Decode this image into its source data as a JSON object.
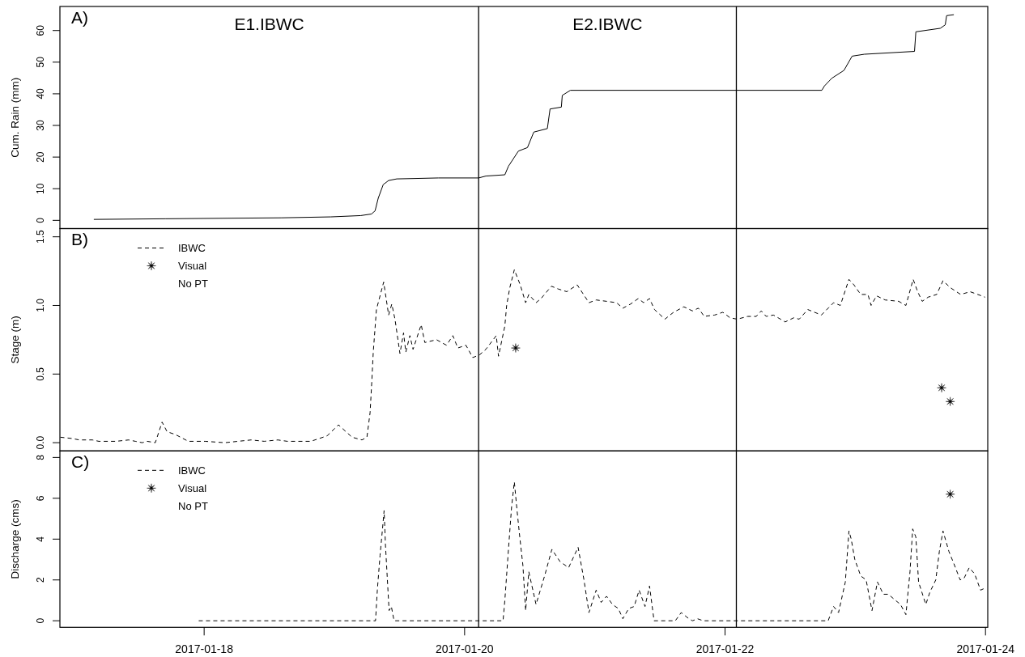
{
  "chart_data": [
    {
      "type": "line",
      "title": "A)",
      "ylabel": "Cum. Rain (mm)",
      "xlim": [
        "2017-01-16T21:25",
        "2017-01-24T00:25"
      ],
      "ylim": [
        -2.6,
        67.6
      ],
      "yticks": [
        0,
        10,
        20,
        30,
        40,
        50,
        60
      ],
      "tick_labels": "y",
      "series": [
        {
          "color": "#000000",
          "x": [
            "2017-01-17T03:40",
            "2017-01-17T16:50",
            "2017-01-18T14:10",
            "2017-01-18T23:20",
            "2017-01-19T04:50",
            "2017-01-19T06:50",
            "2017-01-19T07:30",
            "2017-01-19T08:05",
            "2017-01-19T09:00",
            "2017-01-19T10:00",
            "2017-01-19T11:30",
            "2017-01-19T19:10",
            "2017-01-20T02:35",
            "2017-01-20T03:55",
            "2017-01-20T07:25",
            "2017-01-20T08:05",
            "2017-01-20T09:55",
            "2017-01-20T11:35",
            "2017-01-20T12:45",
            "2017-01-20T15:15",
            "2017-01-20T15:45",
            "2017-01-20T17:50",
            "2017-01-20T18:00",
            "2017-01-20T19:30",
            "2017-01-22T02:05",
            "2017-01-22T17:50",
            "2017-01-22T18:20",
            "2017-01-22T19:40",
            "2017-01-22T21:55",
            "2017-01-22T23:25",
            "2017-01-23T01:40",
            "2017-01-23T10:55",
            "2017-01-23T11:10",
            "2017-01-23T15:40",
            "2017-01-23T16:35",
            "2017-01-23T16:50",
            "2017-01-23T18:10"
          ],
          "values": [
            0.3,
            0.5,
            0.8,
            1.1,
            1.5,
            2.0,
            3,
            7,
            11.3,
            12.6,
            13.1,
            13.4,
            13.4,
            14.0,
            14.4,
            17.1,
            21.9,
            23.0,
            27.9,
            29.0,
            35.2,
            35.8,
            39.5,
            41.1,
            41.1,
            41.1,
            42.5,
            44.9,
            47.4,
            51.9,
            52.5,
            53.4,
            59.6,
            60.7,
            61.8,
            64.7,
            65.0
          ]
        }
      ],
      "ref_lines": [
        {
          "axis": "x",
          "value": "2017-01-20T02:35",
          "color": "#000000"
        },
        {
          "axis": "x",
          "value": "2017-01-22T02:05",
          "color": "#000000"
        }
      ],
      "annotations": [
        "E1.IBWC",
        "E2.IBWC"
      ]
    },
    {
      "type": "line",
      "title": "B)",
      "ylabel": "Stage (m)",
      "xlim": [
        "2017-01-16T21:25",
        "2017-01-24T00:25"
      ],
      "ylim": [
        -0.06,
        1.56
      ],
      "yticks": [
        {
          "value": 0,
          "label": "0.0"
        },
        0.5,
        {
          "value": 1,
          "label": "1.0"
        },
        1.5
      ],
      "tick_labels": "y",
      "legend": "top left",
      "series": [
        {
          "name": "IBWC",
          "line_style": "dashed",
          "color": "#000000",
          "x": [
            "2017-01-16T21:30",
            "2017-01-16T23:45",
            "2017-01-17T01:00",
            "2017-01-17T03:25",
            "2017-01-17T04:35",
            "2017-01-17T06:30",
            "2017-01-17T07:45",
            "2017-01-17T10:05",
            "2017-01-17T11:20",
            "2017-01-17T12:35",
            "2017-01-17T13:30",
            "2017-01-17T15:00",
            "2017-01-17T16:15",
            "2017-01-17T17:10",
            "2017-01-17T18:40",
            "2017-01-17T21:05",
            "2017-01-18T00:10",
            "2017-01-18T03:50",
            "2017-01-18T06:15",
            "2017-01-18T08:40",
            "2017-01-18T11:05",
            "2017-01-18T13:35",
            "2017-01-18T15:20",
            "2017-01-18T19:40",
            "2017-01-18T22:40",
            "2017-01-19T00:45",
            "2017-01-19T03:15",
            "2017-01-19T05:05",
            "2017-01-19T06:00",
            "2017-01-19T06:35",
            "2017-01-19T06:55",
            "2017-01-19T07:10",
            "2017-01-19T07:45",
            "2017-01-19T09:05",
            "2017-01-19T10:00",
            "2017-01-19T10:35",
            "2017-01-19T11:10",
            "2017-01-19T12:05",
            "2017-01-19T12:45",
            "2017-01-19T13:10",
            "2017-01-19T13:55",
            "2017-01-19T14:30",
            "2017-01-19T16:00",
            "2017-01-19T16:40",
            "2017-01-19T18:50",
            "2017-01-19T20:40",
            "2017-01-19T21:50",
            "2017-01-19T22:45",
            "2017-01-20T00:15",
            "2017-01-20T01:30",
            "2017-01-20T02:45",
            "2017-01-20T03:55",
            "2017-01-20T05:50",
            "2017-01-20T06:15",
            "2017-01-20T07:25",
            "2017-01-20T07:45",
            "2017-01-20T08:20",
            "2017-01-20T09:10",
            "2017-01-20T10:15",
            "2017-01-20T11:15",
            "2017-01-20T11:50",
            "2017-01-20T13:10",
            "2017-01-20T14:05",
            "2017-01-20T16:00",
            "2017-01-20T17:15",
            "2017-01-20T18:50",
            "2017-01-20T20:45",
            "2017-01-20T22:55",
            "2017-01-21T00:15",
            "2017-01-21T02:10",
            "2017-01-21T04:00",
            "2017-01-21T05:10",
            "2017-01-21T06:35",
            "2017-01-21T08:00",
            "2017-01-21T09:00",
            "2017-01-21T10:05",
            "2017-01-21T11:00",
            "2017-01-21T12:55",
            "2017-01-21T14:30",
            "2017-01-21T16:25",
            "2017-01-21T18:00",
            "2017-01-21T19:05",
            "2017-01-21T20:10",
            "2017-01-21T22:05",
            "2017-01-21T23:35",
            "2017-01-22T00:55",
            "2017-01-22T02:15",
            "2017-01-22T04:10",
            "2017-01-22T05:45",
            "2017-01-22T06:40",
            "2017-01-22T07:35",
            "2017-01-22T08:55",
            "2017-01-22T11:05",
            "2017-01-22T12:40",
            "2017-01-22T13:40",
            "2017-01-22T15:15",
            "2017-01-22T17:45",
            "2017-01-22T20:00",
            "2017-01-22T21:15",
            "2017-01-22T22:10",
            "2017-01-22T22:50",
            "2017-01-22T23:45",
            "2017-01-23T01:00",
            "2017-01-23T02:20",
            "2017-01-23T02:55",
            "2017-01-23T03:55",
            "2017-01-23T05:30",
            "2017-01-23T08:00",
            "2017-01-23T09:20",
            "2017-01-23T10:40",
            "2017-01-23T11:30",
            "2017-01-23T12:20",
            "2017-01-23T13:25",
            "2017-01-23T15:00",
            "2017-01-23T16:10",
            "2017-01-23T17:30",
            "2017-01-23T19:25",
            "2017-01-23T21:10",
            "2017-01-23T22:35",
            "2017-01-23T23:55"
          ],
          "values": [
            0.04,
            0.03,
            0.02,
            0.02,
            0.01,
            0.01,
            0.01,
            0.02,
            0.01,
            0.0,
            0.01,
            0.0,
            0.15,
            0.08,
            0.06,
            0.01,
            0.01,
            0.0,
            0.01,
            0.02,
            0.01,
            0.02,
            0.01,
            0.01,
            0.05,
            0.13,
            0.04,
            0.02,
            0.04,
            0.22,
            0.46,
            0.66,
            0.97,
            1.17,
            0.93,
            1.01,
            0.9,
            0.65,
            0.8,
            0.66,
            0.78,
            0.68,
            0.86,
            0.73,
            0.75,
            0.71,
            0.78,
            0.69,
            0.71,
            0.62,
            0.64,
            0.68,
            0.78,
            0.63,
            0.85,
            1.0,
            1.13,
            1.26,
            1.15,
            1.02,
            1.08,
            1.02,
            1.05,
            1.14,
            1.12,
            1.1,
            1.15,
            1.02,
            1.04,
            1.03,
            1.02,
            0.98,
            1.01,
            1.05,
            1.02,
            1.05,
            0.97,
            0.9,
            0.95,
            0.99,
            0.96,
            0.98,
            0.92,
            0.93,
            0.95,
            0.91,
            0.9,
            0.92,
            0.92,
            0.96,
            0.92,
            0.93,
            0.88,
            0.91,
            0.9,
            0.97,
            0.93,
            1.02,
            1.0,
            1.11,
            1.19,
            1.15,
            1.08,
            1.08,
            1.0,
            1.07,
            1.04,
            1.03,
            1.0,
            1.19,
            1.1,
            1.03,
            1.06,
            1.08,
            1.18,
            1.13,
            1.08,
            1.1,
            1.08,
            1.06
          ]
        },
        {
          "name": "Visual",
          "type": "scatter",
          "marker": "star",
          "color": "#000000",
          "x": [
            "2017-01-20T09:25",
            "2017-01-23T15:55",
            "2017-01-23T17:30"
          ],
          "values": [
            0.69,
            0.4,
            0.3
          ]
        }
      ],
      "ref_lines": [
        {
          "axis": "x",
          "value": "2017-01-20T02:35",
          "color": "#000000"
        },
        {
          "axis": "x",
          "value": "2017-01-22T02:05",
          "color": "#000000"
        }
      ],
      "annotations": [
        "No PT"
      ]
    },
    {
      "type": "line",
      "title": "C)",
      "ylabel": "Discharge (cms)",
      "xlim": [
        "2017-01-16T21:25",
        "2017-01-24T00:25"
      ],
      "xticks": [
        "2017-01-18",
        "2017-01-20",
        "2017-01-22",
        "2017-01-24"
      ],
      "ylim": [
        -0.32,
        8.32
      ],
      "yticks": [
        0,
        2,
        4,
        6,
        8
      ],
      "legend": "top left",
      "series": [
        {
          "name": "IBWC",
          "line_style": "dashed",
          "color": "#000000",
          "x": [
            "2017-01-17T23:00",
            "2017-01-19T07:35",
            "2017-01-19T07:55",
            "2017-01-19T08:25",
            "2017-01-19T08:50",
            "2017-01-19T09:10",
            "2017-01-19T09:25",
            "2017-01-19T09:45",
            "2017-01-19T10:05",
            "2017-01-19T10:30",
            "2017-01-19T11:00",
            "2017-01-20T02:50",
            "2017-01-20T07:05",
            "2017-01-20T07:25",
            "2017-01-20T08:05",
            "2017-01-20T08:40",
            "2017-01-20T09:10",
            "2017-01-20T09:40",
            "2017-01-20T10:10",
            "2017-01-20T10:45",
            "2017-01-20T11:15",
            "2017-01-20T11:50",
            "2017-01-20T13:10",
            "2017-01-20T14:45",
            "2017-01-20T16:05",
            "2017-01-20T17:35",
            "2017-01-20T19:10",
            "2017-01-20T20:55",
            "2017-01-20T22:00",
            "2017-01-20T22:55",
            "2017-01-21T00:15",
            "2017-01-21T01:10",
            "2017-01-21T02:10",
            "2017-01-21T03:15",
            "2017-01-21T04:20",
            "2017-01-21T05:10",
            "2017-01-21T06:15",
            "2017-01-21T07:15",
            "2017-01-21T08:10",
            "2017-01-21T09:15",
            "2017-01-21T10:05",
            "2017-01-21T10:55",
            "2017-01-21T14:50",
            "2017-01-21T15:55",
            "2017-01-21T17:20",
            "2017-01-21T18:00",
            "2017-01-21T18:55",
            "2017-01-21T20:00",
            "2017-01-22T19:00",
            "2017-01-22T20:00",
            "2017-01-22T20:55",
            "2017-01-22T22:10",
            "2017-01-22T22:50",
            "2017-01-22T23:15",
            "2017-01-22T23:55",
            "2017-01-23T01:00",
            "2017-01-23T02:00",
            "2017-01-23T03:05",
            "2017-01-23T04:05",
            "2017-01-23T05:10",
            "2017-01-23T06:05",
            "2017-01-23T07:25",
            "2017-01-23T08:20",
            "2017-01-23T09:20",
            "2017-01-23T10:05",
            "2017-01-23T10:35",
            "2017-01-23T11:10",
            "2017-01-23T11:40",
            "2017-01-23T13:00",
            "2017-01-23T13:45",
            "2017-01-23T14:50",
            "2017-01-23T15:30",
            "2017-01-23T16:10",
            "2017-01-23T17:15",
            "2017-01-23T18:10",
            "2017-01-23T19:20",
            "2017-01-23T20:05",
            "2017-01-23T21:00",
            "2017-01-23T22:00",
            "2017-01-23T23:05",
            "2017-01-23T23:55"
          ],
          "values": [
            0,
            0,
            1.5,
            3.2,
            4.4,
            5.4,
            3.7,
            2.1,
            0.5,
            0.7,
            0,
            0,
            0,
            1.0,
            3.5,
            5.6,
            6.8,
            5.4,
            4.1,
            2.7,
            0.5,
            2.4,
            0.8,
            2.2,
            3.5,
            2.9,
            2.6,
            3.6,
            2.0,
            0.4,
            1.5,
            0.9,
            1.2,
            0.8,
            0.6,
            0.1,
            0.6,
            0.7,
            1.5,
            0.7,
            1.7,
            0,
            0,
            0.4,
            0.1,
            0,
            0.1,
            0,
            0,
            0.7,
            0.4,
            1.9,
            4.4,
            4.0,
            3.0,
            2.2,
            2.0,
            0.5,
            1.9,
            1.3,
            1.3,
            1.0,
            0.8,
            0.3,
            2.4,
            4.5,
            4.1,
            1.9,
            0.8,
            1.4,
            2.0,
            3.4,
            4.4,
            3.4,
            2.8,
            2.0,
            2.1,
            2.6,
            2.3,
            1.5,
            1.6
          ]
        },
        {
          "name": "Visual",
          "type": "scatter",
          "marker": "star",
          "color": "#000000",
          "x": [
            "2017-01-23T17:30"
          ],
          "values": [
            6.2
          ]
        }
      ],
      "ref_lines": [
        {
          "axis": "x",
          "value": "2017-01-20T02:35",
          "color": "#000000"
        },
        {
          "axis": "x",
          "value": "2017-01-22T02:05",
          "color": "#000000"
        }
      ],
      "annotations": [
        "No PT"
      ]
    }
  ]
}
